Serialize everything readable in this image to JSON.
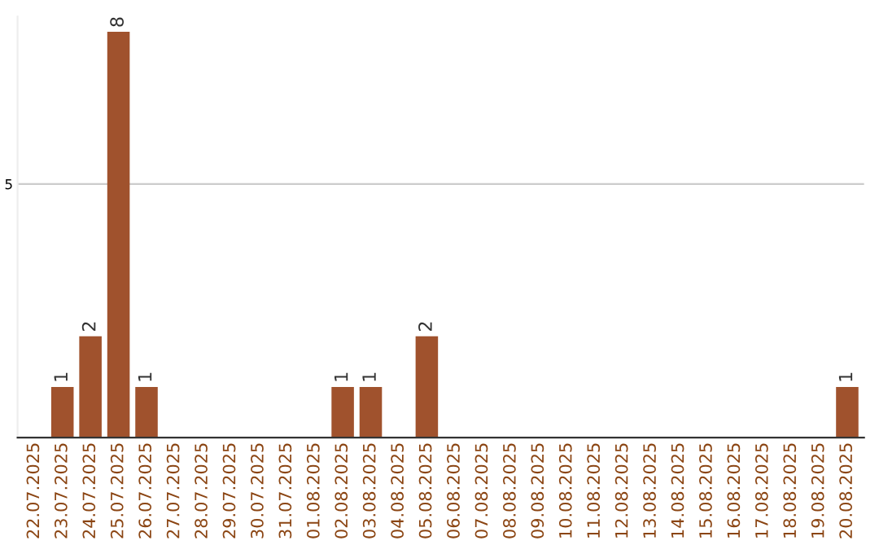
{
  "chart_data": {
    "type": "bar",
    "categories": [
      "22.07.2025",
      "23.07.2025",
      "24.07.2025",
      "25.07.2025",
      "26.07.2025",
      "27.07.2025",
      "28.07.2025",
      "29.07.2025",
      "30.07.2025",
      "31.07.2025",
      "01.08.2025",
      "02.08.2025",
      "03.08.2025",
      "04.08.2025",
      "05.08.2025",
      "06.08.2025",
      "07.08.2025",
      "08.08.2025",
      "09.08.2025",
      "10.08.2025",
      "11.08.2025",
      "12.08.2025",
      "13.08.2025",
      "14.08.2025",
      "15.08.2025",
      "16.08.2025",
      "17.08.2025",
      "18.08.2025",
      "19.08.2025",
      "20.08.2025"
    ],
    "values": [
      0,
      1,
      2,
      8,
      1,
      0,
      0,
      0,
      0,
      0,
      0,
      1,
      1,
      0,
      2,
      0,
      0,
      0,
      0,
      0,
      0,
      0,
      0,
      0,
      0,
      0,
      0,
      0,
      0,
      1
    ],
    "value_labels": [
      null,
      "1",
      "2",
      "8",
      "1",
      null,
      null,
      null,
      null,
      null,
      null,
      "1",
      "1",
      null,
      "2",
      null,
      null,
      null,
      null,
      null,
      null,
      null,
      null,
      null,
      null,
      null,
      null,
      null,
      null,
      "1"
    ],
    "color": "#a0522d",
    "ylim": [
      0,
      8.3
    ],
    "yticks": [
      5
    ],
    "grid": "y"
  }
}
